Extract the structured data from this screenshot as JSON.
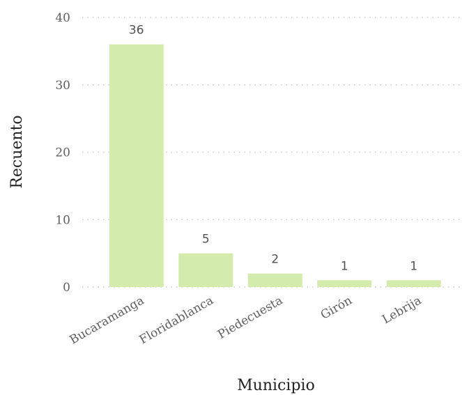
{
  "chart_data": {
    "type": "bar",
    "categories": [
      "Bucaramanga",
      "Floridablanca",
      "Piedecuesta",
      "Girón",
      "Lebrija"
    ],
    "values": [
      36,
      5,
      2,
      1,
      1
    ],
    "data_labels": [
      "36",
      "5",
      "2",
      "1",
      "1"
    ],
    "xlabel": "Municipio",
    "ylabel": "Recuento",
    "ylim": [
      0,
      40
    ],
    "yticks": [
      0,
      10,
      20,
      30,
      40
    ],
    "ytick_labels": [
      "0",
      "10",
      "20",
      "30",
      "40"
    ],
    "grid": "horizontal-dotted",
    "bar_color": "#d4ebae"
  }
}
